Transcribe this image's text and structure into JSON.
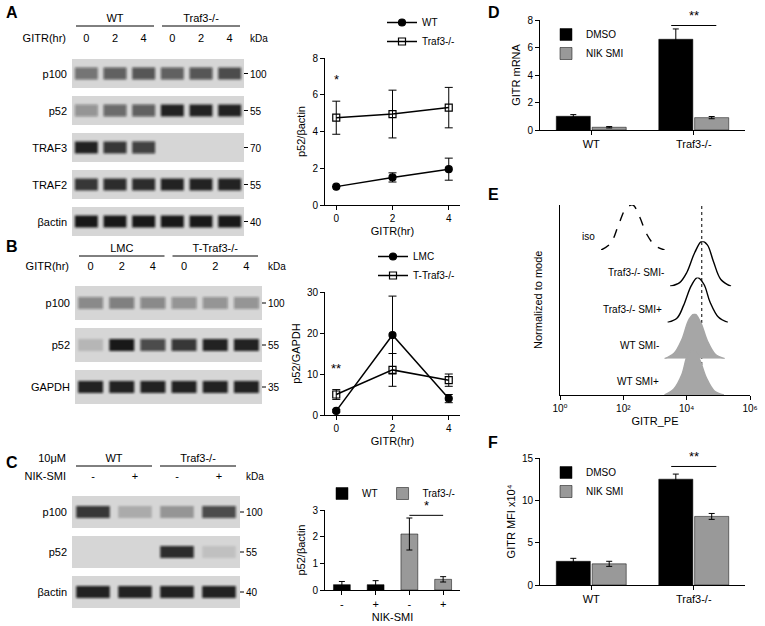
{
  "blots": [
    {
      "panel": "A",
      "groups": [
        {
          "label": "WT",
          "lanes": 3
        },
        {
          "label": "Traf3-/-",
          "lanes": 3
        }
      ],
      "lane_title": "GITR(hr)",
      "lanes": [
        0,
        2,
        4,
        0,
        2,
        4
      ],
      "kda_title": "kDa",
      "rows": [
        {
          "label": "p100",
          "kda": 100,
          "bands": [
            0.5,
            0.6,
            0.65,
            0.6,
            0.65,
            0.7
          ]
        },
        {
          "label": "p52",
          "kda": 55,
          "bands": [
            0.35,
            0.55,
            0.6,
            0.9,
            0.9,
            0.9
          ]
        },
        {
          "label": "TRAF3",
          "kda": 70,
          "bands": [
            0.9,
            0.8,
            0.75,
            0,
            0,
            0
          ]
        },
        {
          "label": "TRAF2",
          "kda": 55,
          "bands": [
            0.8,
            0.85,
            0.85,
            0.9,
            0.9,
            0.9
          ]
        },
        {
          "label": "βactin",
          "kda": 40,
          "bands": [
            0.95,
            0.95,
            0.95,
            0.95,
            0.95,
            0.95
          ]
        }
      ]
    },
    {
      "panel": "B",
      "groups": [
        {
          "label": "LMC",
          "lanes": 3
        },
        {
          "label": "T-Traf3-/-",
          "lanes": 3
        }
      ],
      "lane_title": "GITR(hr)",
      "lanes": [
        0,
        2,
        4,
        0,
        2,
        4
      ],
      "kda_title": "kDa",
      "rows": [
        {
          "label": "p100",
          "kda": 100,
          "bands": [
            0.4,
            0.45,
            0.4,
            0.35,
            0.35,
            0.35
          ]
        },
        {
          "label": "p52",
          "kda": 55,
          "bands": [
            0.15,
            0.95,
            0.7,
            0.8,
            0.9,
            0.9
          ]
        },
        {
          "label": "GAPDH",
          "kda": 35,
          "bands": [
            0.9,
            0.9,
            0.9,
            0.9,
            0.9,
            0.9
          ]
        }
      ]
    },
    {
      "panel": "C",
      "treatment": "10μM",
      "groups": [
        {
          "label": "WT",
          "lanes": 2
        },
        {
          "label": "Traf3-/-",
          "lanes": 2
        }
      ],
      "lane_title": "NIK-SMI",
      "lanes": [
        "-",
        "+",
        "-",
        "+"
      ],
      "kda_title": "kDa",
      "rows": [
        {
          "label": "p100",
          "kda": 100,
          "bands": [
            0.8,
            0.2,
            0.3,
            0.7
          ]
        },
        {
          "label": "p52",
          "kda": 55,
          "bands": [
            0,
            0,
            0.85,
            0.1
          ]
        },
        {
          "label": "βactin",
          "kda": 40,
          "bands": [
            0.9,
            0.9,
            0.9,
            0.9
          ]
        }
      ]
    }
  ],
  "chart_data": [
    {
      "type": "line",
      "x": [
        0,
        2,
        4
      ],
      "xlim": [
        -0.4,
        4.4
      ],
      "xticks": [
        0,
        2,
        4
      ],
      "ylim": [
        0,
        8
      ],
      "yticks": [
        0,
        2,
        4,
        6,
        8
      ],
      "grid": false,
      "x_label": "GITR(hr)",
      "y_label": "p52/βactin",
      "legend": "top",
      "series": [
        {
          "name": "WT",
          "color": "#000000",
          "marker": "circle",
          "line_style": "solid",
          "values": [
            1,
            1.5,
            1.95
          ],
          "errors": [
            0,
            0.25,
            0.6
          ]
        },
        {
          "name": "Traf3-/-",
          "color": "#000000",
          "marker": "square-open",
          "line_style": "solid",
          "values": [
            4.75,
            4.95,
            5.3
          ],
          "errors": [
            0.9,
            1.3,
            1.1
          ]
        }
      ],
      "significance": [
        {
          "text": "*",
          "x": 0,
          "y": 6.3
        }
      ]
    },
    {
      "type": "line",
      "x": [
        0,
        2,
        4
      ],
      "xlim": [
        -0.4,
        4.4
      ],
      "xticks": [
        0,
        2,
        4
      ],
      "ylim": [
        0,
        30
      ],
      "yticks": [
        0,
        10,
        20,
        30
      ],
      "grid": false,
      "x_label": "GITR(hr)",
      "y_label": "p52/GAPDH",
      "legend": "top",
      "series": [
        {
          "name": "LMC",
          "color": "#000000",
          "marker": "circle",
          "line_style": "solid",
          "values": [
            1,
            19.5,
            4
          ],
          "errors": [
            0.3,
            9.5,
            1
          ]
        },
        {
          "name": "T-Traf3-/-",
          "color": "#000000",
          "marker": "square-open",
          "line_style": "solid",
          "values": [
            5,
            11,
            8.5
          ],
          "errors": [
            1.2,
            4,
            1.5
          ]
        }
      ],
      "significance": [
        {
          "text": "**",
          "x": 0,
          "y": 9
        }
      ]
    },
    {
      "type": "bar",
      "categories": [
        "-",
        "+",
        "-",
        "+"
      ],
      "ylim": [
        0,
        3
      ],
      "yticks": [
        0,
        1,
        2,
        3
      ],
      "grid": false,
      "x_label": "NIK-SMI",
      "y_label": "p52/βactin",
      "legend": "top right",
      "series": [
        {
          "name": "WT",
          "color": "#000000",
          "values": [
            0.2,
            0.2,
            null,
            null
          ],
          "errors": [
            0.12,
            0.15,
            null,
            null
          ]
        },
        {
          "name": "Traf3-/-",
          "color": "#999999",
          "values": [
            null,
            null,
            2.1,
            0.4
          ],
          "errors": [
            null,
            null,
            0.6,
            0.1
          ]
        }
      ],
      "significance": [
        {
          "text": "*",
          "from": 2,
          "to": 3,
          "y": 2.8
        }
      ]
    },
    {
      "type": "bar",
      "panel": "D",
      "categories": [
        "WT",
        "Traf3-/-"
      ],
      "ylim": [
        0,
        8
      ],
      "yticks": [
        0,
        2,
        4,
        6,
        8
      ],
      "grid": false,
      "y_label": "GITR mRNA",
      "legend": "top left",
      "series": [
        {
          "name": "DMSO",
          "color": "#000000",
          "values": [
            1.0,
            6.6
          ],
          "errors": [
            0.12,
            0.75
          ]
        },
        {
          "name": "NIK SMI",
          "color": "#999999",
          "values": [
            0.2,
            0.9
          ],
          "errors": [
            0.05,
            0.08
          ]
        }
      ],
      "significance": [
        {
          "text": "**",
          "category": 1,
          "y": 7.6
        }
      ]
    },
    {
      "type": "area",
      "panel": "E",
      "log": "x",
      "xlim": [
        1,
        1000000
      ],
      "xticks": [
        {
          "value": 1,
          "label": "10⁰"
        },
        {
          "value": 100,
          "label": "10²"
        },
        {
          "value": 10000,
          "label": "10⁴"
        },
        {
          "value": 1000000,
          "label": "10⁶"
        }
      ],
      "ylim": [
        0,
        100
      ],
      "tick_labels": "x",
      "grid": false,
      "x_label": "GITR_PE",
      "y_label": "Normalized to mode",
      "reference_x": 30000,
      "series": [
        {
          "name": "iso",
          "type": "line",
          "color": "#000000",
          "line_style": "dash",
          "x": [
            20,
            40,
            70,
            120,
            200,
            320,
            550,
            1000,
            2000
          ],
          "values": [
            0,
            15,
            55,
            92,
            100,
            75,
            35,
            10,
            0
          ]
        },
        {
          "name": "Traf3-/- SMI-",
          "type": "line",
          "color": "#000000",
          "line_style": "solid",
          "x": [
            3000,
            6000,
            10000,
            18000,
            30000,
            45000,
            70000,
            120000,
            250000
          ],
          "values": [
            0,
            8,
            30,
            75,
            100,
            92,
            55,
            15,
            0
          ]
        },
        {
          "name": "Traf3-/- SMI+",
          "type": "line",
          "color": "#000000",
          "line_style": "solid",
          "x": [
            2500,
            5000,
            8000,
            14000,
            22000,
            35000,
            55000,
            100000,
            200000
          ],
          "values": [
            0,
            10,
            38,
            82,
            100,
            85,
            45,
            12,
            0
          ]
        },
        {
          "name": "WT SMI-",
          "type": "area",
          "color": "#a6a6a6",
          "line_style": "solid",
          "x": [
            2000,
            4000,
            7000,
            12000,
            18000,
            28000,
            45000,
            80000,
            160000
          ],
          "values": [
            0,
            12,
            42,
            88,
            100,
            80,
            40,
            10,
            0
          ]
        },
        {
          "name": "WT SMI+",
          "type": "area",
          "color": "#a6a6a6",
          "line_style": "solid",
          "x": [
            2000,
            4000,
            7000,
            11000,
            17000,
            26000,
            42000,
            75000,
            150000
          ],
          "values": [
            0,
            14,
            45,
            90,
            100,
            78,
            38,
            9,
            0
          ]
        }
      ]
    },
    {
      "type": "bar",
      "panel": "F",
      "categories": [
        "WT",
        "Traf3-/-"
      ],
      "ylim": [
        0,
        15
      ],
      "yticks": [
        0,
        5,
        10,
        15
      ],
      "grid": false,
      "y_label": "GITR MFI x10⁴",
      "legend": "top left",
      "series": [
        {
          "name": "DMSO",
          "color": "#000000",
          "values": [
            2.8,
            12.5
          ],
          "errors": [
            0.35,
            0.6
          ]
        },
        {
          "name": "NIK SMI",
          "color": "#999999",
          "values": [
            2.5,
            8.1
          ],
          "errors": [
            0.3,
            0.35
          ]
        }
      ],
      "significance": [
        {
          "text": "**",
          "category": 1,
          "y": 14
        }
      ]
    }
  ]
}
